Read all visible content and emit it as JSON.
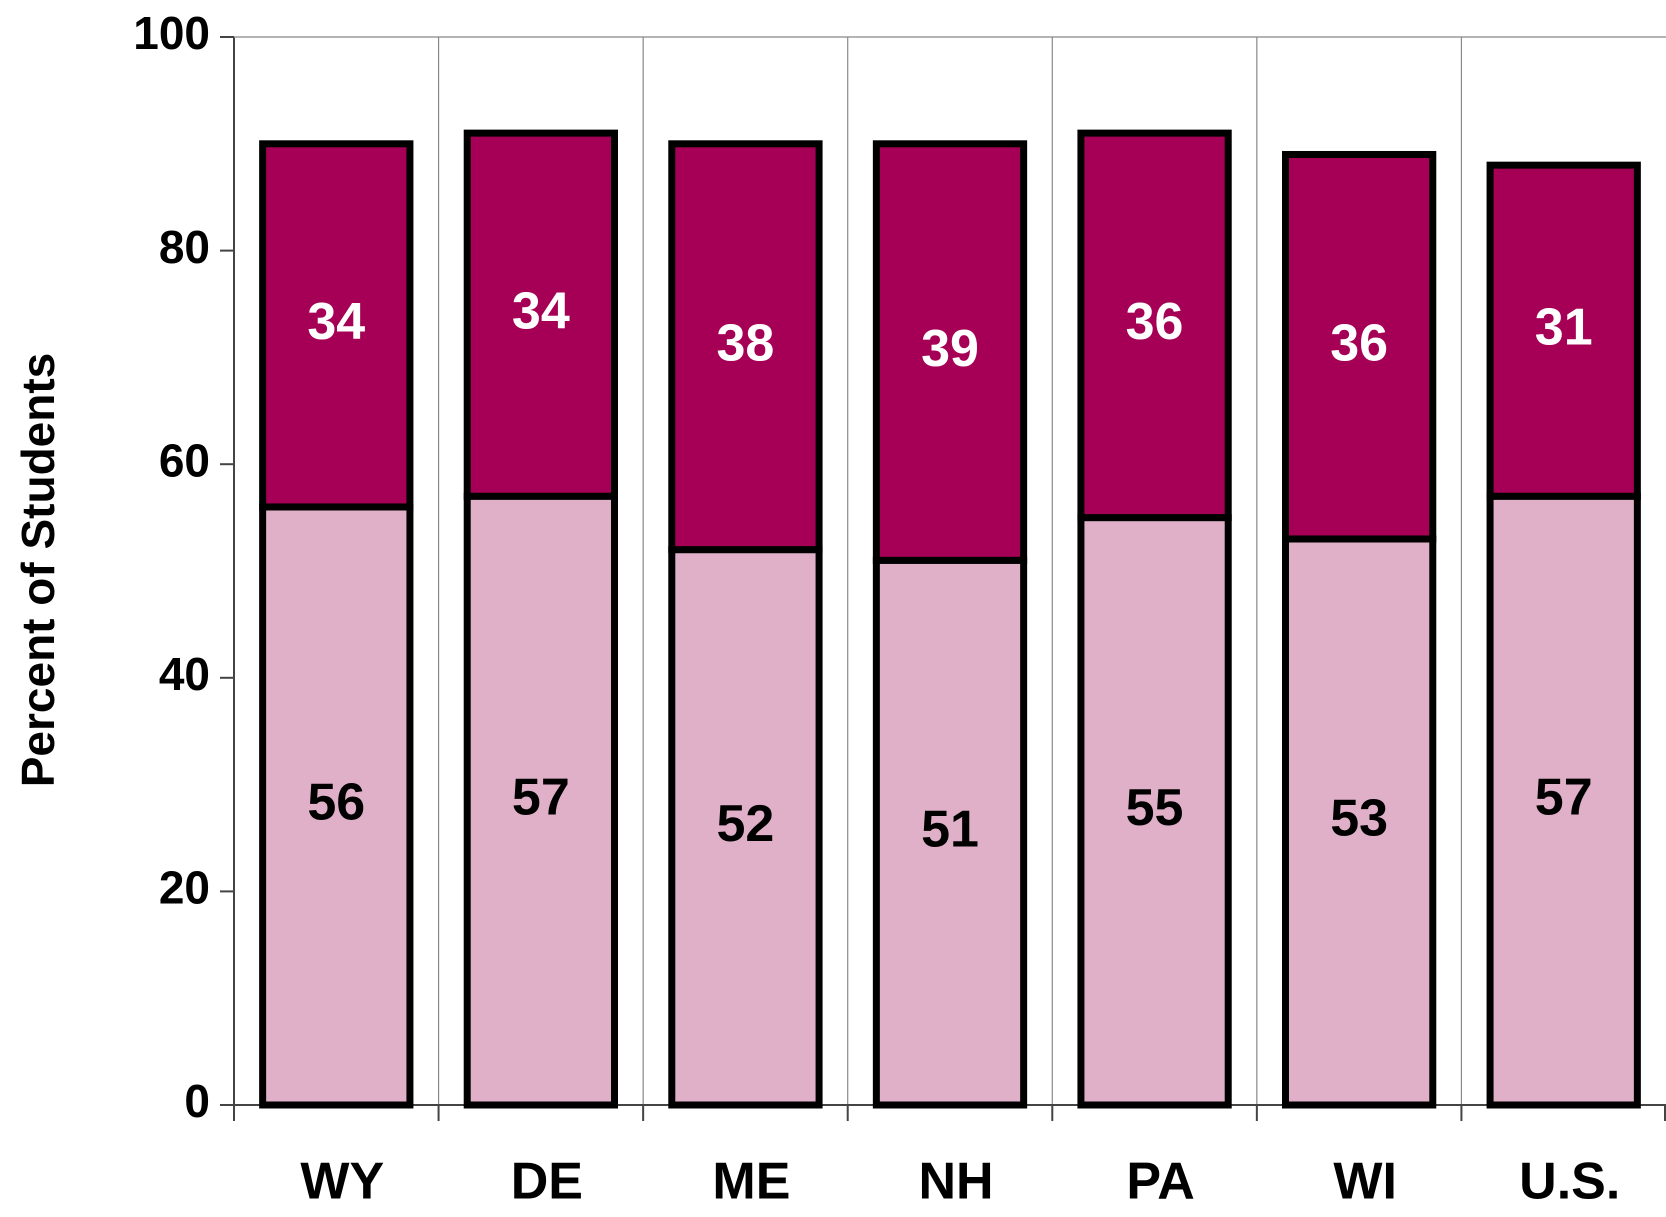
{
  "chart_data": {
    "type": "stacked_bar",
    "ylabel": "Percent of Students",
    "categories": [
      "WY",
      "DE",
      "ME",
      "NH",
      "PA",
      "WI",
      "U.S."
    ],
    "series": [
      {
        "color": "#dfb0c8",
        "label_color": "#000000",
        "values": [
          56,
          57,
          52,
          51,
          55,
          53,
          57
        ]
      },
      {
        "color": "#a50055",
        "label_color": "#ffffff",
        "values": [
          34,
          34,
          38,
          39,
          36,
          36,
          31
        ]
      }
    ],
    "ylim": [
      0,
      100
    ],
    "yticks": [
      0,
      20,
      40,
      60,
      80,
      100
    ],
    "grid": "vertical"
  }
}
